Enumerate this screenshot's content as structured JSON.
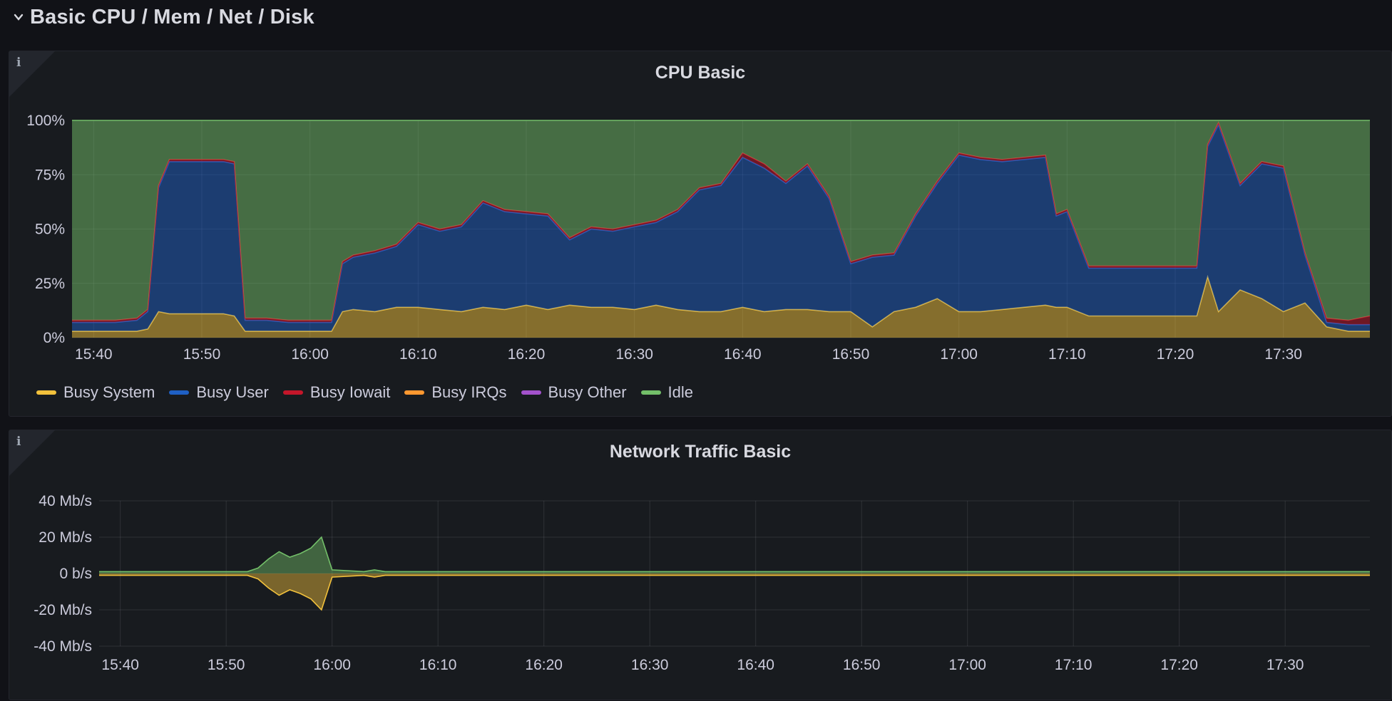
{
  "row": {
    "title": "Basic CPU / Mem / Net / Disk",
    "chevron_icon": "chevron-down-icon"
  },
  "colors": {
    "busy_system": "#f2c13c",
    "busy_user": "#1f60c4",
    "busy_iowait": "#c4162a",
    "busy_irqs": "#ff9830",
    "busy_other": "#a352cc",
    "idle": "#73bf69",
    "net_recv": "#73bf69",
    "net_send": "#f2c13c"
  },
  "cpu_panel": {
    "info_icon": "info-icon",
    "title": "CPU Basic",
    "y_ticks": [
      "100%",
      "75%",
      "50%",
      "25%",
      "0%"
    ],
    "x_ticks": [
      "15:40",
      "15:50",
      "16:00",
      "16:10",
      "16:20",
      "16:30",
      "16:40",
      "16:50",
      "17:00",
      "17:10",
      "17:20",
      "17:30"
    ],
    "legend": [
      "Busy System",
      "Busy User",
      "Busy Iowait",
      "Busy IRQs",
      "Busy Other",
      "Idle"
    ]
  },
  "net_panel": {
    "info_icon": "info-icon",
    "title": "Network Traffic Basic",
    "y_ticks": [
      "40 Mb/s",
      "20 Mb/s",
      "0 b/s",
      "-20 Mb/s",
      "-40 Mb/s"
    ],
    "x_ticks": [
      "15:40",
      "15:50",
      "16:00",
      "16:10",
      "16:20",
      "16:30",
      "16:40",
      "16:50",
      "17:00",
      "17:10",
      "17:20",
      "17:30"
    ]
  },
  "chart_data": [
    {
      "type": "area",
      "title": "CPU Basic",
      "ylabel": "",
      "ylim": [
        0,
        100
      ],
      "unit": "%",
      "stacked": true,
      "grid": true,
      "legend_position": "bottom",
      "x": [
        "15:38",
        "15:40",
        "15:42",
        "15:44",
        "15:45",
        "15:46",
        "15:47",
        "15:48",
        "15:50",
        "15:52",
        "15:53",
        "15:54",
        "15:56",
        "15:58",
        "16:00",
        "16:02",
        "16:03",
        "16:04",
        "16:06",
        "16:08",
        "16:10",
        "16:12",
        "16:14",
        "16:16",
        "16:18",
        "16:20",
        "16:22",
        "16:24",
        "16:26",
        "16:28",
        "16:30",
        "16:32",
        "16:34",
        "16:36",
        "16:38",
        "16:40",
        "16:42",
        "16:44",
        "16:46",
        "16:48",
        "16:50",
        "16:52",
        "16:54",
        "16:56",
        "16:58",
        "17:00",
        "17:02",
        "17:04",
        "17:06",
        "17:08",
        "17:09",
        "17:10",
        "17:12",
        "17:14",
        "17:16",
        "17:18",
        "17:20",
        "17:22",
        "17:23",
        "17:24",
        "17:26",
        "17:28",
        "17:30",
        "17:32",
        "17:34",
        "17:36",
        "17:38"
      ],
      "series": [
        {
          "name": "Busy System",
          "values": [
            3,
            3,
            3,
            3,
            4,
            12,
            11,
            11,
            11,
            11,
            10,
            3,
            3,
            3,
            3,
            3,
            12,
            13,
            12,
            14,
            14,
            13,
            12,
            14,
            13,
            15,
            13,
            15,
            14,
            14,
            13,
            15,
            13,
            12,
            12,
            14,
            12,
            13,
            13,
            12,
            12,
            5,
            12,
            14,
            18,
            12,
            12,
            13,
            14,
            15,
            14,
            14,
            10,
            10,
            10,
            10,
            10,
            10,
            28,
            12,
            22,
            18,
            12,
            16,
            5,
            3,
            3
          ]
        },
        {
          "name": "Busy User",
          "values": [
            4,
            4,
            4,
            5,
            8,
            57,
            70,
            70,
            70,
            70,
            70,
            5,
            5,
            4,
            4,
            4,
            22,
            24,
            27,
            28,
            38,
            36,
            39,
            48,
            45,
            42,
            43,
            30,
            36,
            35,
            38,
            38,
            45,
            56,
            58,
            69,
            66,
            58,
            66,
            52,
            22,
            32,
            26,
            42,
            53,
            72,
            70,
            68,
            68,
            68,
            42,
            44,
            22,
            22,
            22,
            22,
            22,
            22,
            60,
            86,
            48,
            62,
            66,
            22,
            2,
            3,
            3
          ]
        },
        {
          "name": "Busy Iowait",
          "values": [
            1,
            1,
            1,
            1,
            1,
            1,
            1,
            1,
            1,
            1,
            1,
            1,
            1,
            1,
            1,
            1,
            1,
            1,
            1,
            1,
            1,
            1,
            1,
            1,
            1,
            1,
            1,
            1,
            1,
            1,
            1,
            1,
            1,
            1,
            1,
            2,
            2,
            1,
            1,
            1,
            1,
            1,
            1,
            1,
            1,
            1,
            1,
            1,
            1,
            1,
            1,
            1,
            1,
            1,
            1,
            1,
            1,
            1,
            1,
            1,
            1,
            1,
            1,
            1,
            2,
            2,
            4
          ]
        },
        {
          "name": "Busy IRQs",
          "values": [
            0,
            0,
            0,
            0,
            0,
            0,
            0,
            0,
            0,
            0,
            0,
            0,
            0,
            0,
            0,
            0,
            0,
            0,
            0,
            0,
            0,
            0,
            0,
            0,
            0,
            0,
            0,
            0,
            0,
            0,
            0,
            0,
            0,
            0,
            0,
            0,
            0,
            0,
            0,
            0,
            0,
            0,
            0,
            0,
            0,
            0,
            0,
            0,
            0,
            0,
            0,
            0,
            0,
            0,
            0,
            0,
            0,
            0,
            0,
            0,
            0,
            0,
            0,
            0,
            0,
            0,
            0
          ]
        },
        {
          "name": "Busy Other",
          "values": [
            0,
            0,
            0,
            0,
            0,
            0,
            0,
            0,
            0,
            0,
            0,
            0,
            0,
            0,
            0,
            0,
            0,
            0,
            0,
            0,
            0,
            0,
            0,
            0,
            0,
            0,
            0,
            0,
            0,
            0,
            0,
            0,
            0,
            0,
            0,
            0,
            0,
            0,
            0,
            0,
            0,
            0,
            0,
            0,
            0,
            0,
            0,
            0,
            0,
            0,
            0,
            0,
            0,
            0,
            0,
            0,
            0,
            0,
            0,
            0,
            0,
            0,
            0,
            0,
            0,
            0,
            0
          ]
        },
        {
          "name": "Idle",
          "values": [
            92,
            92,
            92,
            91,
            87,
            30,
            18,
            18,
            18,
            18,
            19,
            91,
            91,
            92,
            92,
            92,
            65,
            62,
            60,
            57,
            47,
            50,
            48,
            37,
            41,
            42,
            43,
            54,
            49,
            50,
            48,
            46,
            41,
            31,
            29,
            15,
            20,
            28,
            20,
            35,
            65,
            62,
            61,
            43,
            28,
            15,
            17,
            18,
            17,
            16,
            43,
            41,
            67,
            67,
            67,
            67,
            67,
            67,
            11,
            1,
            29,
            19,
            21,
            61,
            91,
            92,
            90
          ]
        }
      ]
    },
    {
      "type": "area",
      "title": "Network Traffic Basic",
      "ylabel": "",
      "unit": "Mb/s",
      "ylim": [
        -40,
        40
      ],
      "grid": true,
      "x": [
        "15:38",
        "15:52",
        "15:53",
        "15:54",
        "15:55",
        "15:56",
        "15:57",
        "15:58",
        "15:59",
        "16:00",
        "16:03",
        "16:04",
        "16:05",
        "17:38"
      ],
      "series": [
        {
          "values": [
            1,
            1,
            3,
            8,
            12,
            9,
            11,
            14,
            20,
            2,
            1,
            2,
            1,
            1
          ]
        },
        {
          "values": [
            -1,
            -1,
            -3,
            -8,
            -12,
            -9,
            -11,
            -14,
            -20,
            -2,
            -1,
            -2,
            -1,
            -1
          ]
        }
      ]
    }
  ]
}
